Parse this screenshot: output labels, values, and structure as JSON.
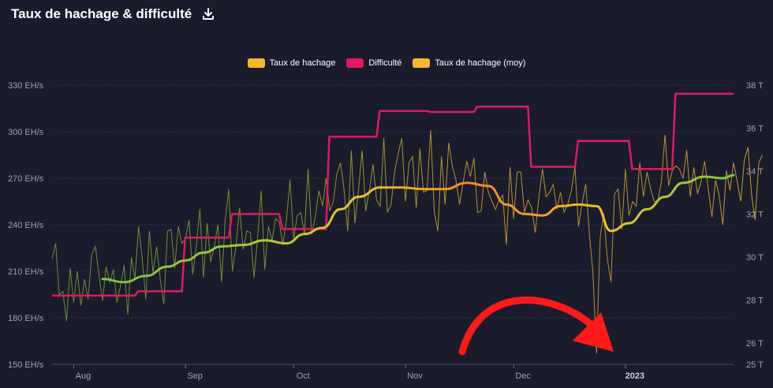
{
  "header": {
    "title": "Taux de hachage & difficulté",
    "download_icon": "download-icon"
  },
  "colors": {
    "background": "#1a1c2c",
    "hashrate": "#f5b82e",
    "difficulty": "#e01a5e",
    "hashrate_avg": "#f5b82e",
    "avg_gradient": [
      "#7cc242",
      "#9bc83a",
      "#e8c52a",
      "#f08a24",
      "#e8c52a",
      "#7cc242"
    ],
    "arrow": "#ff1a1a"
  },
  "chart_data": {
    "type": "line",
    "legend": [
      {
        "name": "Taux de hachage",
        "color": "#f5b82e"
      },
      {
        "name": "Difficulté",
        "color": "#e01a5e"
      },
      {
        "name": "Taux de hachage (moy)",
        "color": "#f5b82e"
      }
    ],
    "legend_position": "top-center",
    "x_start": "2022-07-26",
    "x_end": "2023-01-31",
    "x_ticks": [
      {
        "label": "Aug",
        "date": "2022-08-01"
      },
      {
        "label": "Sep",
        "date": "2022-09-01"
      },
      {
        "label": "Oct",
        "date": "2022-10-01"
      },
      {
        "label": "Nov",
        "date": "2022-11-01"
      },
      {
        "label": "Dec",
        "date": "2022-12-01"
      },
      {
        "label": "2023",
        "date": "2023-01-01",
        "bold": true
      }
    ],
    "y_left": {
      "unit": "EH/s",
      "range": [
        150,
        330
      ],
      "ticks": [
        "150 EH/s",
        "180 EH/s",
        "210 EH/s",
        "240 EH/s",
        "270 EH/s",
        "300 EH/s",
        "330 EH/s"
      ],
      "tick_values": [
        150,
        180,
        210,
        240,
        270,
        300,
        330
      ]
    },
    "y_right": {
      "unit": "T",
      "range": [
        25,
        38
      ],
      "ticks": [
        "25 T",
        "26 T",
        "28 T",
        "30 T",
        "32 T",
        "34 T",
        "36 T",
        "38 T"
      ],
      "tick_values": [
        25,
        26,
        28,
        30,
        32,
        34,
        36,
        38
      ]
    },
    "grid": "horizontal-dotted",
    "series": [
      {
        "name": "Taux de hachage",
        "axis": "left",
        "start": "2022-07-26",
        "step_days": 1,
        "values": [
          218,
          228,
          195,
          197,
          178,
          212,
          190,
          210,
          188,
          205,
          192,
          221,
          226,
          208,
          191,
          213,
          203,
          211,
          190,
          201,
          214,
          182,
          219,
          205,
          239,
          218,
          192,
          236,
          209,
          226,
          205,
          189,
          236,
          237,
          212,
          239,
          228,
          231,
          243,
          208,
          226,
          250,
          206,
          241,
          216,
          226,
          240,
          203,
          242,
          263,
          210,
          226,
          251,
          224,
          236,
          235,
          206,
          232,
          262,
          211,
          239,
          230,
          244,
          242,
          227,
          243,
          269,
          231,
          246,
          248,
          234,
          276,
          234,
          245,
          262,
          252,
          270,
          249,
          255,
          273,
          280,
          262,
          236,
          288,
          241,
          263,
          288,
          249,
          262,
          279,
          256,
          252,
          296,
          248,
          253,
          274,
          286,
          296,
          255,
          280,
          284,
          251,
          289,
          261,
          262,
          301,
          248,
          236,
          284,
          253,
          293,
          278,
          269,
          253,
          267,
          281,
          271,
          283,
          248,
          249,
          274,
          261,
          255,
          250,
          256,
          259,
          227,
          277,
          244,
          274,
          274,
          248,
          256,
          251,
          235,
          257,
          276,
          258,
          261,
          266,
          250,
          261,
          248,
          253,
          262,
          277,
          239,
          254,
          266,
          235,
          209,
          157,
          232,
          247,
          218,
          203,
          260,
          263,
          237,
          276,
          246,
          255,
          252,
          280,
          258,
          274,
          263,
          255,
          255,
          268,
          298,
          265,
          275,
          278,
          276,
          270,
          288,
          258,
          277,
          260,
          268,
          281,
          263,
          245,
          269,
          259,
          240,
          275,
          262,
          280,
          268,
          255,
          282,
          290,
          259,
          243,
          280,
          285
        ]
      },
      {
        "name": "Difficulté",
        "axis": "right",
        "steps": [
          {
            "from": "2022-07-26",
            "value": 28.2
          },
          {
            "from": "2022-08-04",
            "value": 28.2
          },
          {
            "from": "2022-08-18",
            "value": 28.4
          },
          {
            "from": "2022-08-31",
            "value": 30.9
          },
          {
            "from": "2022-09-13",
            "value": 32.0
          },
          {
            "from": "2022-09-27",
            "value": 31.3
          },
          {
            "from": "2022-10-10",
            "value": 35.6
          },
          {
            "from": "2022-10-24",
            "value": 36.8
          },
          {
            "from": "2022-11-07",
            "value": 36.75
          },
          {
            "from": "2022-11-20",
            "value": 37.0
          },
          {
            "from": "2022-12-05",
            "value": 34.2
          },
          {
            "from": "2022-12-18",
            "value": 35.4
          },
          {
            "from": "2023-01-02",
            "value": 34.1
          },
          {
            "from": "2023-01-14",
            "value": 37.6
          }
        ],
        "end": "2023-01-31"
      },
      {
        "name": "Taux de hachage (moy)",
        "axis": "left",
        "points": [
          [
            "2022-08-09",
            205
          ],
          [
            "2022-08-15",
            203
          ],
          [
            "2022-08-21",
            207
          ],
          [
            "2022-08-27",
            213
          ],
          [
            "2022-09-01",
            217
          ],
          [
            "2022-09-06",
            222
          ],
          [
            "2022-09-11",
            226
          ],
          [
            "2022-09-17",
            227
          ],
          [
            "2022-09-23",
            230
          ],
          [
            "2022-09-29",
            228
          ],
          [
            "2022-10-04",
            234
          ],
          [
            "2022-10-09",
            238
          ],
          [
            "2022-10-14",
            250
          ],
          [
            "2022-10-19",
            258
          ],
          [
            "2022-10-25",
            264
          ],
          [
            "2022-10-31",
            264
          ],
          [
            "2022-11-06",
            263
          ],
          [
            "2022-11-12",
            263
          ],
          [
            "2022-11-18",
            267
          ],
          [
            "2022-11-24",
            265
          ],
          [
            "2022-11-29",
            253
          ],
          [
            "2022-12-04",
            247
          ],
          [
            "2022-12-09",
            246
          ],
          [
            "2022-12-14",
            252
          ],
          [
            "2022-12-19",
            253
          ],
          [
            "2022-12-24",
            252
          ],
          [
            "2022-12-28",
            236
          ],
          [
            "2023-01-02",
            241
          ],
          [
            "2023-01-07",
            250
          ],
          [
            "2023-01-12",
            258
          ],
          [
            "2023-01-17",
            267
          ],
          [
            "2023-01-23",
            271
          ],
          [
            "2023-01-28",
            270
          ],
          [
            "2023-01-31",
            272
          ]
        ]
      }
    ]
  }
}
